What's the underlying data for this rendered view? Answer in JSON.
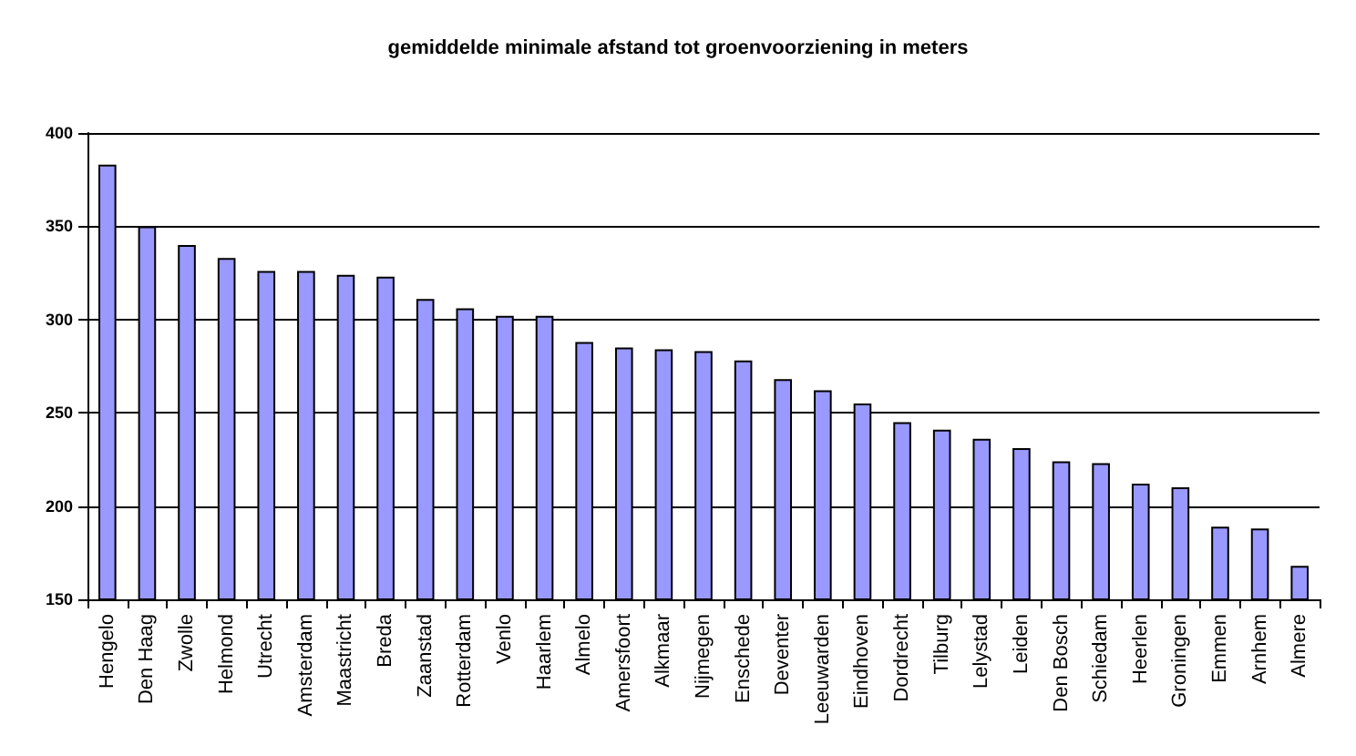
{
  "chart_data": {
    "type": "bar",
    "title": "gemiddelde minimale afstand tot groenvoorziening in meters",
    "categories": [
      "Hengelo",
      "Den Haag",
      "Zwolle",
      "Helmond",
      "Utrecht",
      "Amsterdam",
      "Maastricht",
      "Breda",
      "Zaanstad",
      "Rotterdam",
      "Venlo",
      "Haarlem",
      "Almelo",
      "Amersfoort",
      "Alkmaar",
      "Nijmegen",
      "Enschede",
      "Deventer",
      "Leeuwarden",
      "Eindhoven",
      "Dordrecht",
      "Tilburg",
      "Lelystad",
      "Leiden",
      "Den Bosch",
      "Schiedam",
      "Heerlen",
      "Groningen",
      "Emmen",
      "Arnhem",
      "Almere"
    ],
    "values": [
      383,
      350,
      340,
      333,
      326,
      326,
      324,
      323,
      311,
      306,
      302,
      302,
      288,
      285,
      284,
      283,
      278,
      268,
      262,
      255,
      245,
      241,
      236,
      231,
      224,
      223,
      212,
      210,
      189,
      188,
      168
    ],
    "color": "#9999ff",
    "ylim": [
      150,
      400
    ],
    "yticks": [
      150,
      200,
      250,
      300,
      350,
      400
    ],
    "grid": "y"
  }
}
